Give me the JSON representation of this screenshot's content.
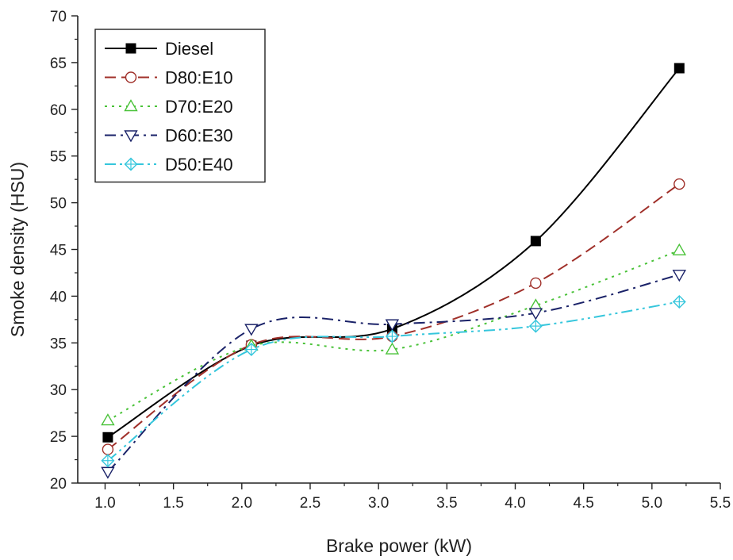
{
  "chart_data": {
    "type": "line",
    "xlabel": "Brake power (kW)",
    "ylabel": "Smoke density (HSU)",
    "xlim": [
      0.8,
      5.5
    ],
    "ylim": [
      20,
      70
    ],
    "x_ticks": [
      "1.0",
      "1.5",
      "2.0",
      "2.5",
      "3.0",
      "3.5",
      "4.0",
      "4.5",
      "5.0",
      "5.5"
    ],
    "y_ticks": [
      "20",
      "25",
      "30",
      "35",
      "40",
      "45",
      "50",
      "55",
      "60",
      "65",
      "70"
    ],
    "x_tick_values": [
      1.0,
      1.5,
      2.0,
      2.5,
      3.0,
      3.5,
      4.0,
      4.5,
      5.0,
      5.5
    ],
    "y_tick_values": [
      20,
      25,
      30,
      35,
      40,
      45,
      50,
      55,
      60,
      65,
      70
    ],
    "grid": false,
    "legend_position": "top-left",
    "x": [
      1.02,
      2.07,
      3.1,
      4.15,
      5.2
    ],
    "series": [
      {
        "name": "Diesel",
        "values": [
          24.9,
          34.7,
          36.5,
          45.9,
          64.4
        ],
        "color": "#000000",
        "marker": "square-filled",
        "dash": "solid"
      },
      {
        "name": "D80:E10",
        "values": [
          23.6,
          34.8,
          35.7,
          41.4,
          52.0
        ],
        "color": "#a0302a",
        "marker": "circle-open",
        "dash": "dash"
      },
      {
        "name": "D70:E20",
        "values": [
          26.7,
          34.7,
          34.3,
          39.0,
          44.9
        ],
        "color": "#49c238",
        "marker": "triangle-up-open",
        "dash": "dot"
      },
      {
        "name": "D60:E30",
        "values": [
          21.2,
          36.5,
          37.0,
          38.2,
          42.3
        ],
        "color": "#1a2268",
        "marker": "triangle-down-open",
        "dash": "dashdot"
      },
      {
        "name": "D50:E40",
        "values": [
          22.4,
          34.3,
          35.7,
          36.8,
          39.4
        ],
        "color": "#35c6dc",
        "marker": "crossed-diamond-open",
        "dash": "dashdotdot"
      }
    ]
  }
}
